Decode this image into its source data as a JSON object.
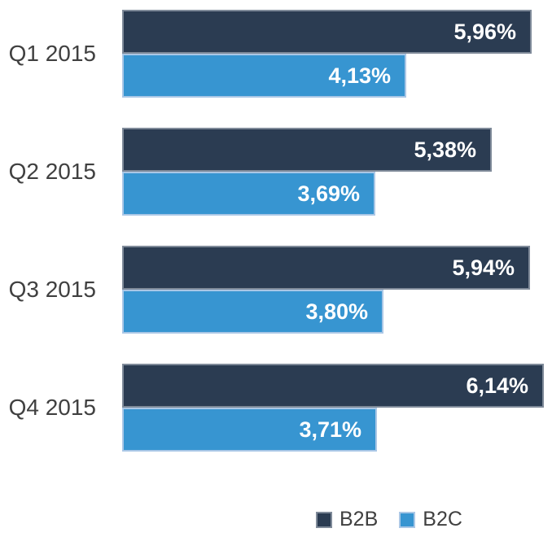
{
  "chart_data": {
    "type": "bar",
    "orientation": "horizontal",
    "title": "",
    "xlabel": "",
    "ylabel": "",
    "categories": [
      "Q1 2015",
      "Q2 2015",
      "Q3 2015",
      "Q4 2015"
    ],
    "series": [
      {
        "name": "B2B",
        "values": [
          5.96,
          5.38,
          5.94,
          6.14
        ],
        "labels": [
          "5,96%",
          "5,38%",
          "5,94%",
          "6,14%"
        ],
        "color": "#2b3c52",
        "border_color": "#7f8a99"
      },
      {
        "name": "B2C",
        "values": [
          4.13,
          3.69,
          3.8,
          3.71
        ],
        "labels": [
          "4,13%",
          "3,69%",
          "3,80%",
          "3,71%"
        ],
        "color": "#3795d1",
        "border_color": "#aac7e6"
      }
    ],
    "value_label_color": "#ffffff",
    "category_label_color": "#404040",
    "legend": [
      "B2B",
      "B2C"
    ],
    "legend_position": "bottom",
    "xlim": [
      0,
      6.26
    ],
    "grid": false
  }
}
